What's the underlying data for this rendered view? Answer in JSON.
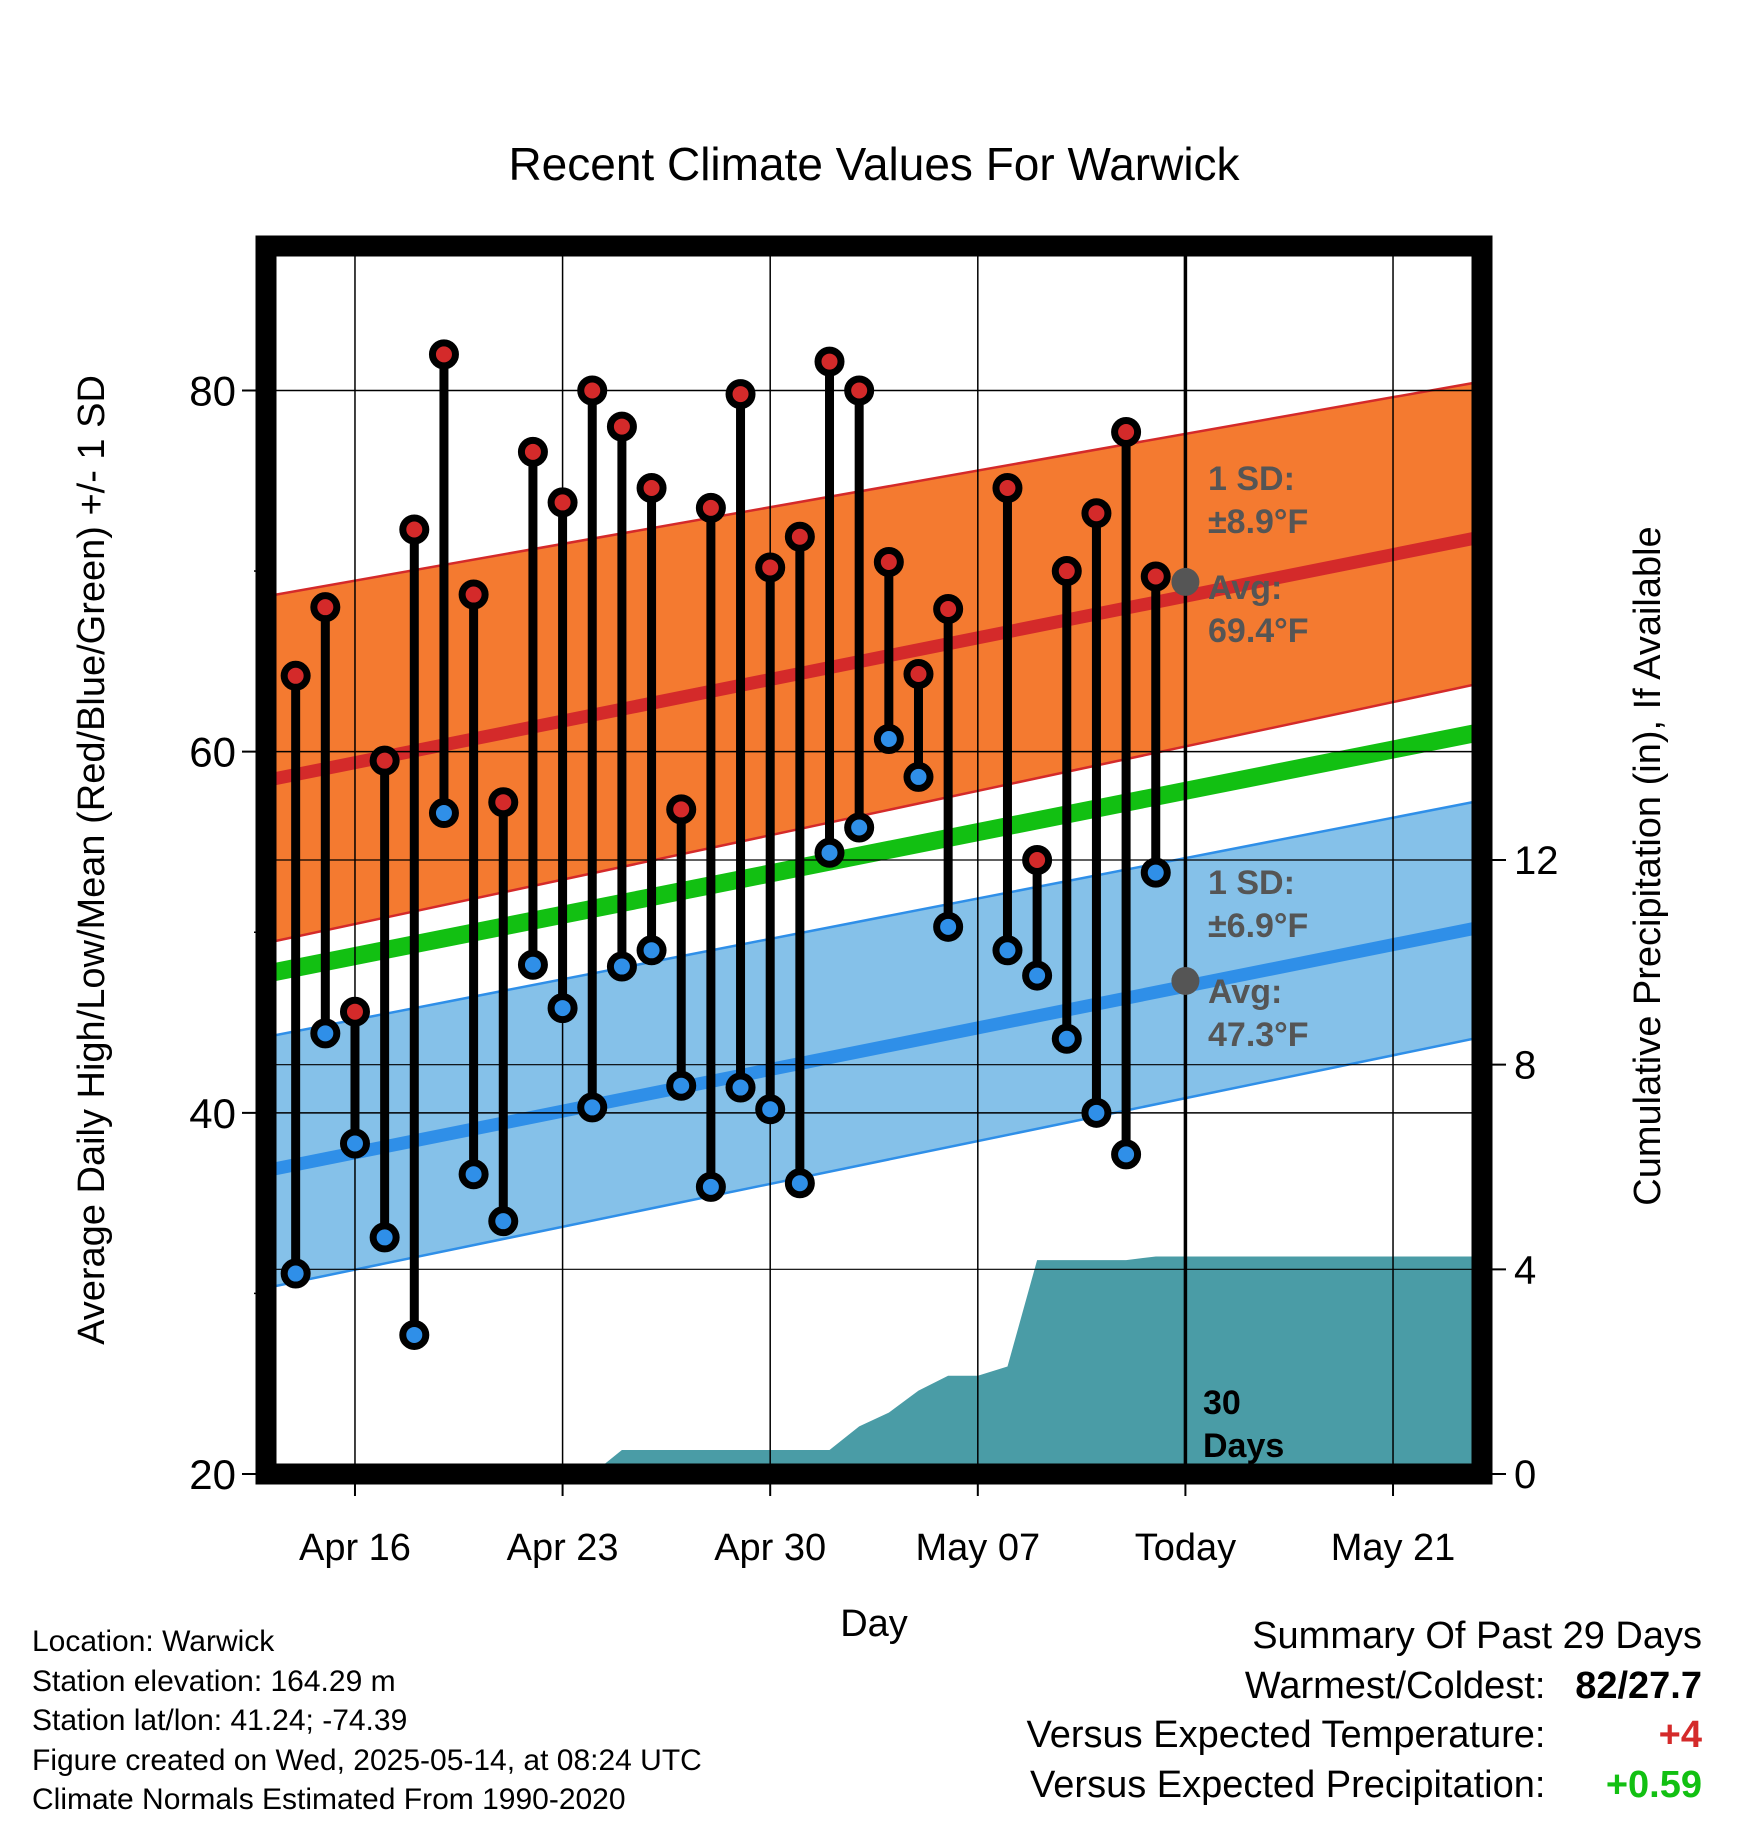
{
  "chart_data": {
    "type": "line",
    "title": "Recent Climate Values For Warwick",
    "xlabel": "Day",
    "ylabel": "Average Daily High/Low/Mean (Red/Blue/Green) +/- 1 SD",
    "ylabel_right": "Cumulative Precipitation (in), If Available",
    "ylim": [
      20,
      88
    ],
    "ylim_right": [
      0,
      24
    ],
    "x_range": [
      "2025-04-13",
      "2025-05-24"
    ],
    "x_ticks": [
      {
        "date": "2025-04-16",
        "label": "Apr 16"
      },
      {
        "date": "2025-04-23",
        "label": "Apr 23"
      },
      {
        "date": "2025-04-30",
        "label": "Apr 30"
      },
      {
        "date": "2025-05-07",
        "label": "May 07"
      },
      {
        "date": "2025-05-14",
        "label": "Today"
      },
      {
        "date": "2025-05-21",
        "label": "May 21"
      }
    ],
    "y_ticks": [
      20,
      40,
      60,
      80
    ],
    "y_ticks_right": [
      0,
      4,
      8,
      12
    ],
    "today": "2025-05-14",
    "today_label": "30 Days",
    "normals": {
      "high_mean": {
        "start": 58.4,
        "end": 71.9
      },
      "high_upper": {
        "start": 68.6,
        "end": 80.5
      },
      "high_lower": {
        "start": 49.4,
        "end": 63.8
      },
      "low_mean": {
        "start": 36.8,
        "end": 50.3
      },
      "low_upper": {
        "start": 44.2,
        "end": 57.3
      },
      "low_lower": {
        "start": 30.3,
        "end": 44.2
      },
      "mean": {
        "start": 47.7,
        "end": 61.1
      }
    },
    "annotations": {
      "high": {
        "sd": "1 SD:",
        "sd_value": "±8.9°F",
        "avg": "Avg:",
        "avg_value": "69.4°F",
        "avg_number": 69.4
      },
      "low": {
        "sd": "1 SD:",
        "sd_value": "±6.9°F",
        "avg": "Avg:",
        "avg_value": "47.3°F",
        "avg_number": 47.3
      }
    },
    "series": [
      {
        "name": "High",
        "color": "#d42a2a",
        "dates": [
          "2025-04-14",
          "2025-04-15",
          "2025-04-16",
          "2025-04-17",
          "2025-04-18",
          "2025-04-19",
          "2025-04-20",
          "2025-04-21",
          "2025-04-22",
          "2025-04-23",
          "2025-04-24",
          "2025-04-25",
          "2025-04-26",
          "2025-04-27",
          "2025-04-28",
          "2025-04-29",
          "2025-04-30",
          "2025-05-01",
          "2025-05-02",
          "2025-05-03",
          "2025-05-04",
          "2025-05-05",
          "2025-05-06",
          "2025-05-08",
          "2025-05-09",
          "2025-05-10",
          "2025-05-11",
          "2025-05-12",
          "2025-05-13"
        ],
        "values": [
          64.2,
          68.0,
          45.6,
          59.5,
          72.3,
          82.0,
          68.7,
          57.2,
          76.6,
          73.8,
          80.0,
          78.0,
          74.6,
          56.8,
          73.5,
          79.8,
          70.2,
          71.9,
          81.6,
          80.0,
          70.5,
          64.3,
          67.9,
          74.6,
          54.0,
          70.0,
          73.2,
          77.7,
          69.7
        ]
      },
      {
        "name": "Low",
        "color": "#2f8fe8",
        "dates": [
          "2025-04-14",
          "2025-04-15",
          "2025-04-16",
          "2025-04-17",
          "2025-04-18",
          "2025-04-19",
          "2025-04-20",
          "2025-04-21",
          "2025-04-22",
          "2025-04-23",
          "2025-04-24",
          "2025-04-25",
          "2025-04-26",
          "2025-04-27",
          "2025-04-28",
          "2025-04-29",
          "2025-04-30",
          "2025-05-01",
          "2025-05-02",
          "2025-05-03",
          "2025-05-04",
          "2025-05-05",
          "2025-05-06",
          "2025-05-08",
          "2025-05-09",
          "2025-05-10",
          "2025-05-11",
          "2025-05-12",
          "2025-05-13"
        ],
        "values": [
          31.1,
          44.4,
          38.3,
          33.1,
          27.7,
          56.6,
          36.6,
          34.0,
          48.2,
          45.8,
          40.3,
          48.1,
          49.0,
          41.5,
          35.9,
          41.4,
          40.2,
          36.1,
          54.4,
          55.8,
          60.7,
          58.6,
          50.3,
          49.0,
          47.6,
          44.1,
          40.0,
          37.7,
          53.3
        ]
      },
      {
        "name": "Cumulative Precipitation",
        "color": "#4a9ca6",
        "dates": [
          "2025-04-24",
          "2025-04-25",
          "2025-04-26",
          "2025-04-27",
          "2025-04-28",
          "2025-04-29",
          "2025-04-30",
          "2025-05-01",
          "2025-05-02",
          "2025-05-03",
          "2025-05-04",
          "2025-05-05",
          "2025-05-06",
          "2025-05-07",
          "2025-05-08",
          "2025-05-09",
          "2025-05-10",
          "2025-05-11",
          "2025-05-12",
          "2025-05-13",
          "2025-05-14",
          "2025-05-24"
        ],
        "values": [
          0.0,
          0.47,
          0.47,
          0.47,
          0.47,
          0.47,
          0.47,
          0.47,
          0.47,
          0.93,
          1.2,
          1.63,
          1.92,
          1.92,
          2.1,
          4.18,
          4.18,
          4.18,
          4.18,
          4.25,
          4.25,
          4.25
        ]
      }
    ]
  },
  "info": {
    "location": "Location: Warwick",
    "elevation": "Station elevation: 164.29 m",
    "latlon": "Station lat/lon: 41.24; -74.39",
    "created": "Figure created on Wed, 2025-05-14, at 08:24 UTC",
    "normals": "Climate Normals Estimated From 1990-2020"
  },
  "summary": {
    "title": "Summary Of Past 29 Days",
    "warmest_label": "Warmest/Coldest:",
    "warmest_value": "82/27.7",
    "temp_label": "Versus Expected Temperature:",
    "temp_value": "+4",
    "temp_color": "#d42a2a",
    "precip_label": "Versus Expected Precipitation:",
    "precip_value": "+0.59",
    "precip_color": "#12c012"
  }
}
